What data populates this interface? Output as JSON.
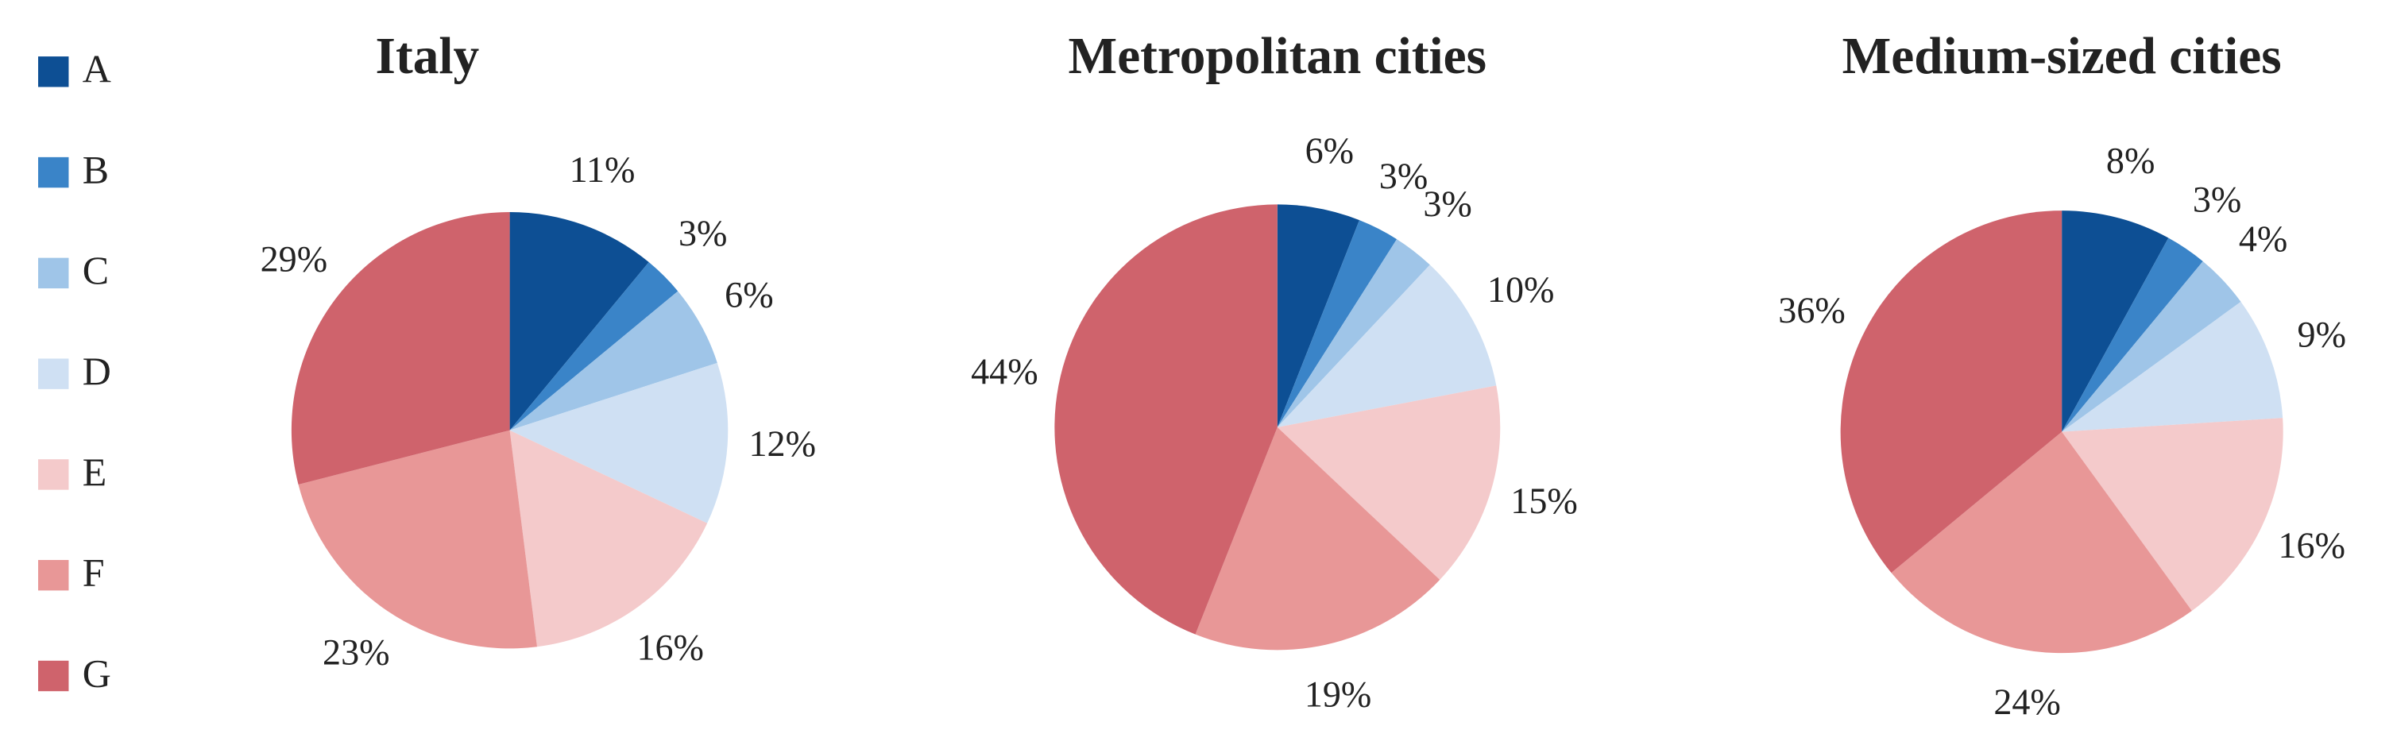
{
  "chart_data": [
    {
      "type": "pie",
      "title": "Italy",
      "categories": [
        "A",
        "B",
        "C",
        "D",
        "E",
        "F",
        "G"
      ],
      "values": [
        11,
        3,
        6,
        12,
        16,
        23,
        29
      ],
      "value_labels": [
        "11%",
        "3%",
        "6%",
        "12%",
        "16%",
        "23%",
        "29%"
      ],
      "colors": [
        "#0d4f94",
        "#3a84c8",
        "#9fc5e8",
        "#cfe0f3",
        "#f4cacb",
        "#e89797",
        "#cf636c"
      ]
    },
    {
      "type": "pie",
      "title": "Metropolitan cities",
      "categories": [
        "A",
        "B",
        "C",
        "D",
        "E",
        "F",
        "G"
      ],
      "values": [
        6,
        3,
        3,
        10,
        15,
        19,
        44
      ],
      "value_labels": [
        "6%",
        "3%",
        "3%",
        "10%",
        "15%",
        "19%",
        "44%"
      ],
      "colors": [
        "#0d4f94",
        "#3a84c8",
        "#9fc5e8",
        "#cfe0f3",
        "#f4cacb",
        "#e89797",
        "#cf636c"
      ]
    },
    {
      "type": "pie",
      "title": "Medium-sized cities",
      "categories": [
        "A",
        "B",
        "C",
        "D",
        "E",
        "F",
        "G"
      ],
      "values": [
        8,
        3,
        4,
        9,
        16,
        24,
        36
      ],
      "value_labels": [
        "8%",
        "3%",
        "4%",
        "9%",
        "16%",
        "24%",
        "36%"
      ],
      "colors": [
        "#0d4f94",
        "#3a84c8",
        "#9fc5e8",
        "#cfe0f3",
        "#f4cacb",
        "#e89797",
        "#cf636c"
      ]
    }
  ]
}
